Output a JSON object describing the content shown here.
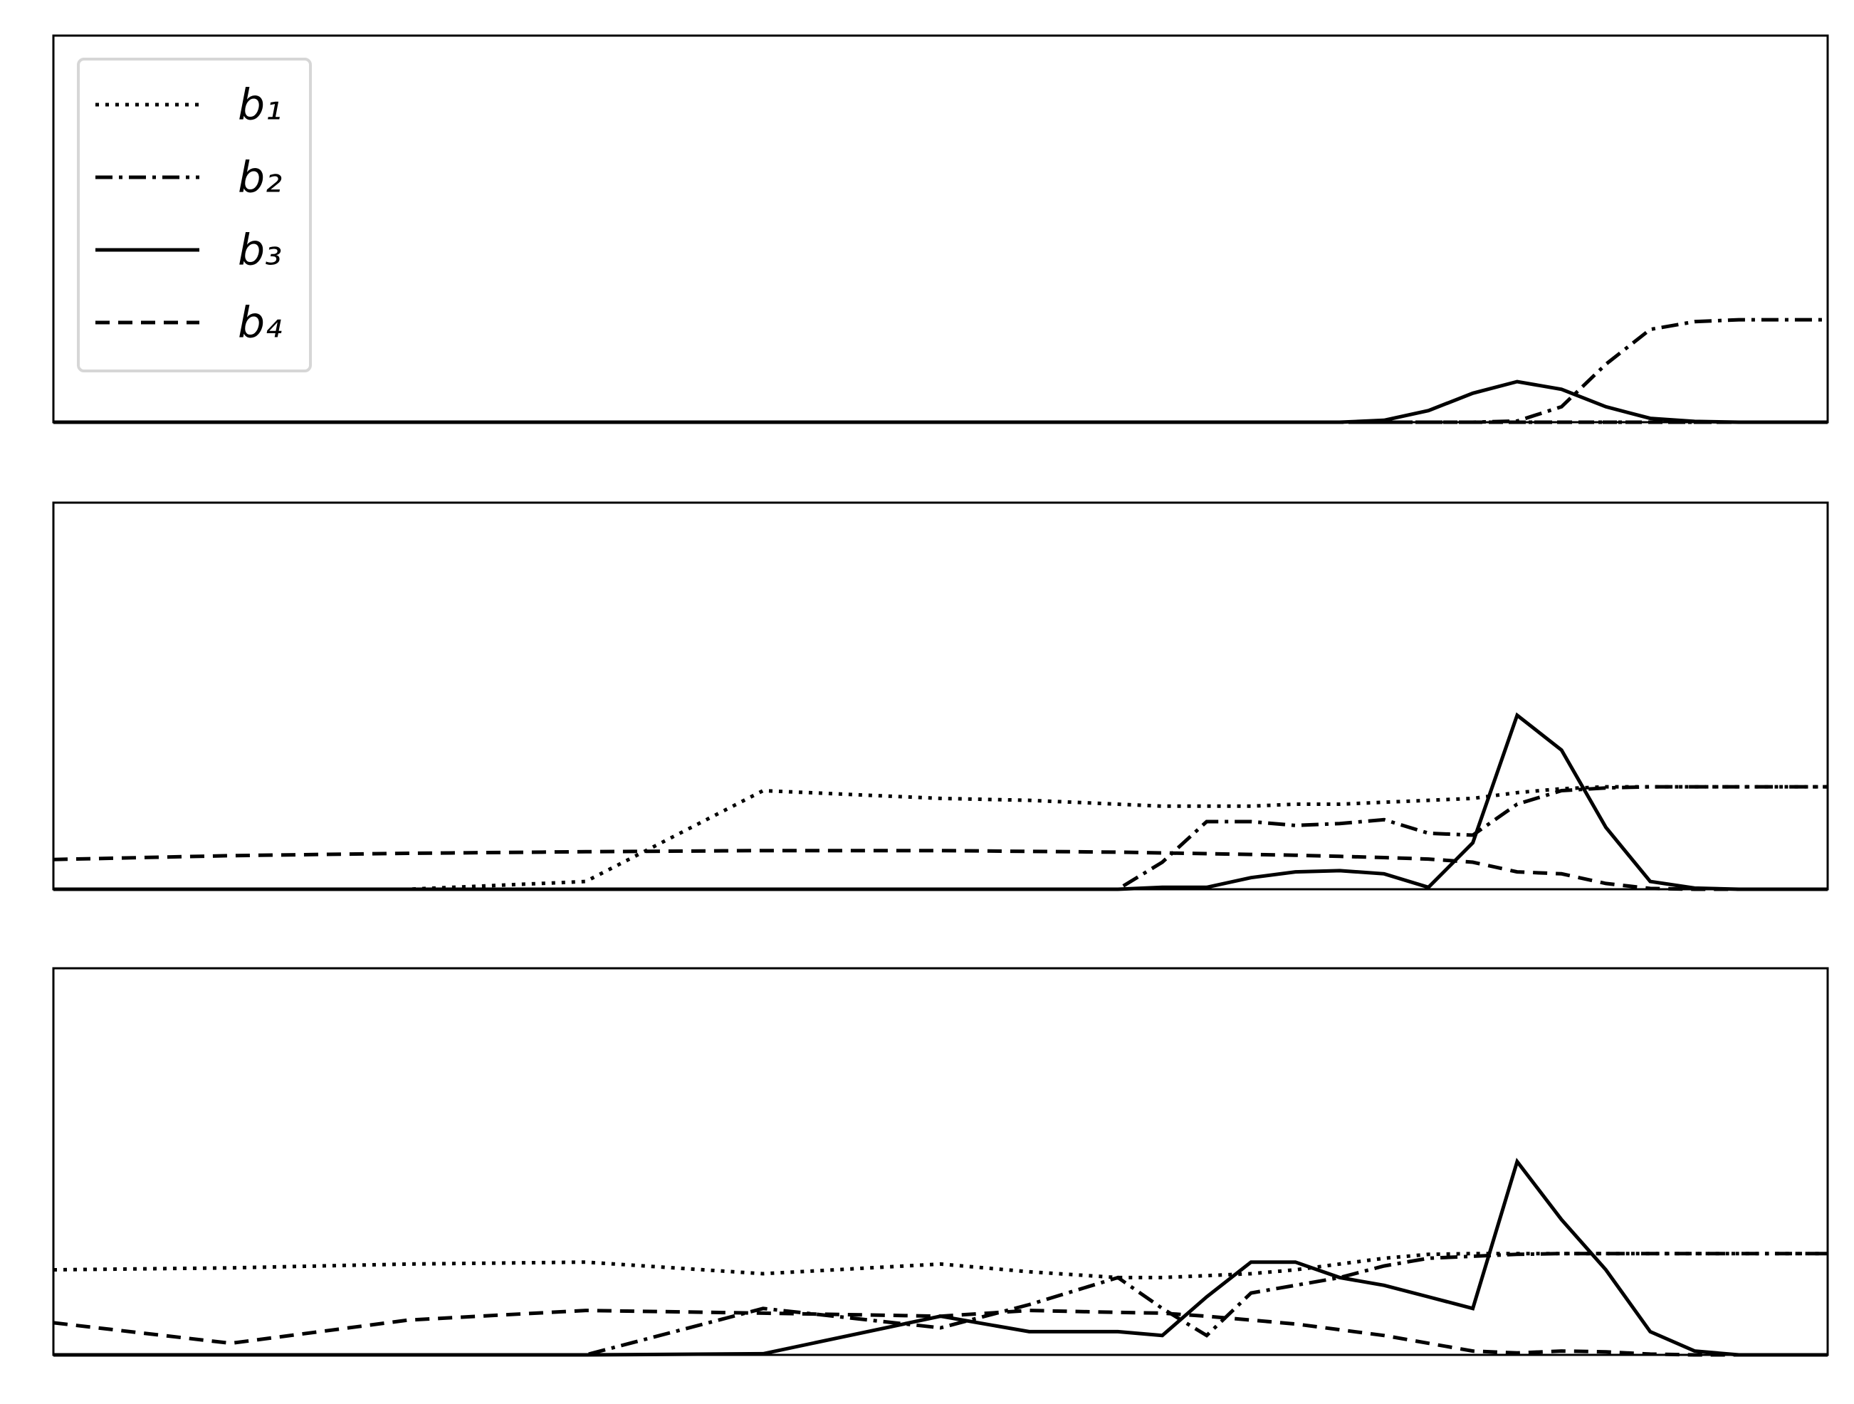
{
  "chart_data": [
    {
      "type": "line",
      "legend": "upper left",
      "xlim": [
        0,
        100
      ],
      "ylim": [
        0,
        1
      ],
      "x": [
        0,
        10,
        20,
        30,
        40,
        50,
        55,
        60,
        62.5,
        65,
        67.5,
        70,
        72.5,
        75,
        77.5,
        80,
        82.5,
        85,
        87.5,
        90,
        92.5,
        95,
        97.5,
        100
      ],
      "series": [
        {
          "name": "b₁",
          "color": "#000000",
          "linestyle": "dotted",
          "values": [
            0,
            0,
            0,
            0,
            0,
            0,
            0,
            0,
            0,
            0,
            0,
            0,
            0,
            0,
            0,
            0,
            0,
            0,
            0,
            0,
            0,
            0,
            0,
            0
          ]
        },
        {
          "name": "b₂",
          "color": "#000000",
          "linestyle": "dashdot",
          "values": [
            0,
            0,
            0,
            0,
            0,
            0,
            0,
            0,
            0,
            0,
            0,
            0,
            0,
            0,
            0,
            0,
            0.003,
            0.04,
            0.15,
            0.24,
            0.26,
            0.265,
            0.265,
            0.265
          ]
        },
        {
          "name": "b₃",
          "color": "#000000",
          "linestyle": "solid",
          "values": [
            0,
            0,
            0,
            0,
            0,
            0,
            0,
            0,
            0,
            0,
            0,
            0,
            0,
            0.005,
            0.03,
            0.075,
            0.105,
            0.085,
            0.04,
            0.01,
            0.002,
            0,
            0,
            0
          ]
        },
        {
          "name": "b₄",
          "color": "#000000",
          "linestyle": "dashed",
          "values": [
            0,
            0,
            0,
            0,
            0,
            0,
            0,
            0,
            0,
            0,
            0,
            0,
            0,
            0,
            0,
            0,
            0,
            0,
            0,
            0,
            0,
            0,
            0,
            0
          ]
        }
      ]
    },
    {
      "type": "line",
      "xlim": [
        0,
        100
      ],
      "ylim": [
        0,
        1
      ],
      "x": [
        0,
        10,
        20,
        30,
        40,
        50,
        55,
        60,
        62.5,
        65,
        67.5,
        70,
        72.5,
        75,
        77.5,
        80,
        82.5,
        85,
        87.5,
        90,
        92.5,
        95,
        97.5,
        100
      ],
      "series": [
        {
          "color": "#000000",
          "linestyle": "dotted",
          "values": [
            0,
            0,
            0,
            0.02,
            0.255,
            0.235,
            0.23,
            0.22,
            0.215,
            0.215,
            0.215,
            0.22,
            0.22,
            0.225,
            0.23,
            0.235,
            0.25,
            0.26,
            0.265,
            0.265,
            0.265,
            0.265,
            0.265,
            0.265
          ]
        },
        {
          "color": "#000000",
          "linestyle": "dashdot",
          "values": [
            0,
            0,
            0,
            0,
            0,
            0,
            0,
            0,
            0.07,
            0.175,
            0.175,
            0.165,
            0.17,
            0.18,
            0.145,
            0.14,
            0.22,
            0.255,
            0.262,
            0.265,
            0.265,
            0.265,
            0.265,
            0.265
          ]
        },
        {
          "color": "#000000",
          "linestyle": "solid",
          "values": [
            0,
            0,
            0,
            0,
            0,
            0,
            0,
            0,
            0.005,
            0.005,
            0.03,
            0.045,
            0.048,
            0.04,
            0.005,
            0.12,
            0.45,
            0.36,
            0.16,
            0.02,
            0.003,
            0,
            0,
            0
          ]
        },
        {
          "color": "#000000",
          "linestyle": "dashed",
          "values": [
            0.077,
            0.087,
            0.093,
            0.097,
            0.1,
            0.1,
            0.098,
            0.096,
            0.094,
            0.092,
            0.09,
            0.088,
            0.085,
            0.082,
            0.078,
            0.07,
            0.045,
            0.04,
            0.015,
            0.002,
            0,
            0,
            0,
            0
          ]
        }
      ]
    },
    {
      "type": "line",
      "xlim": [
        0,
        100
      ],
      "ylim": [
        0,
        1
      ],
      "x": [
        0,
        10,
        20,
        30,
        40,
        50,
        55,
        60,
        62.5,
        65,
        67.5,
        70,
        72.5,
        75,
        77.5,
        80,
        82.5,
        85,
        87.5,
        90,
        92.5,
        95,
        97.5,
        100
      ],
      "series": [
        {
          "color": "#000000",
          "linestyle": "dotted",
          "values": [
            0.22,
            0.225,
            0.235,
            0.24,
            0.21,
            0.235,
            0.215,
            0.2,
            0.2,
            0.205,
            0.21,
            0.22,
            0.235,
            0.25,
            0.26,
            0.262,
            0.262,
            0.262,
            0.262,
            0.262,
            0.262,
            0.262,
            0.262,
            0.262
          ]
        },
        {
          "color": "#000000",
          "linestyle": "dashdot",
          "values": [
            0,
            0,
            0,
            0,
            0.12,
            0.07,
            0.13,
            0.2,
            0.12,
            0.05,
            0.16,
            0.18,
            0.2,
            0.23,
            0.25,
            0.255,
            0.26,
            0.262,
            0.262,
            0.262,
            0.262,
            0.262,
            0.262,
            0.262
          ]
        },
        {
          "color": "#000000",
          "linestyle": "solid",
          "values": [
            0,
            0,
            0,
            0,
            0.003,
            0.1,
            0.06,
            0.06,
            0.05,
            0.15,
            0.24,
            0.24,
            0.2,
            0.18,
            0.15,
            0.12,
            0.5,
            0.35,
            0.22,
            0.06,
            0.01,
            0,
            0,
            0
          ]
        },
        {
          "color": "#000000",
          "linestyle": "dashed",
          "values": [
            0.083,
            0.03,
            0.09,
            0.115,
            0.108,
            0.1,
            0.115,
            0.11,
            0.108,
            0.1,
            0.09,
            0.08,
            0.065,
            0.05,
            0.03,
            0.01,
            0.005,
            0.01,
            0.008,
            0.002,
            0,
            0,
            0,
            0
          ]
        }
      ]
    }
  ]
}
